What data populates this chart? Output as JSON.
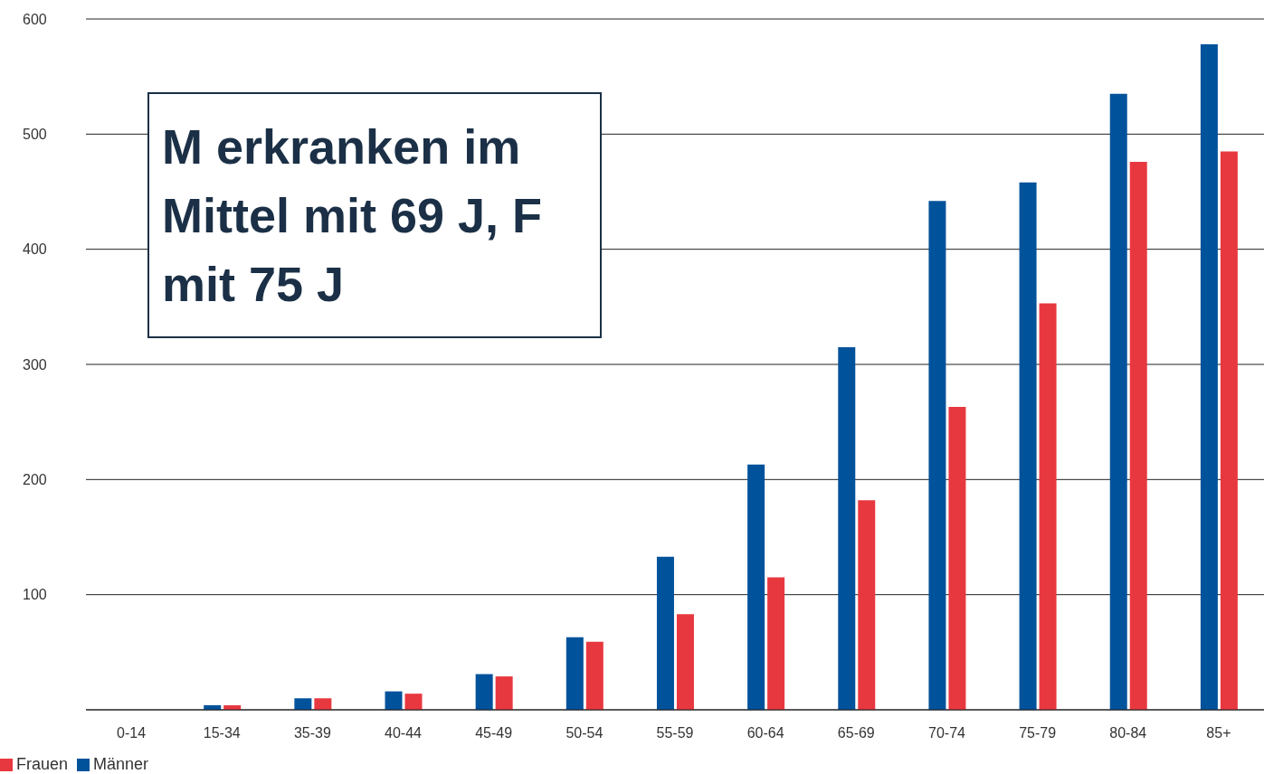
{
  "chart_data": {
    "type": "bar",
    "categories": [
      "0-14",
      "15-34",
      "35-39",
      "40-44",
      "45-49",
      "50-54",
      "55-59",
      "60-64",
      "65-69",
      "70-74",
      "75-79",
      "80-84",
      "85+"
    ],
    "series": [
      {
        "name": "Männer",
        "color": "#00529b",
        "values": [
          0,
          4,
          10,
          16,
          31,
          63,
          133,
          213,
          315,
          442,
          458,
          535,
          578
        ]
      },
      {
        "name": "Frauen",
        "color": "#e8383f",
        "values": [
          0,
          4,
          10,
          14,
          29,
          59,
          83,
          115,
          182,
          263,
          353,
          476,
          485
        ]
      }
    ],
    "ylim": [
      0,
      600
    ],
    "yticks": [
      100,
      200,
      300,
      400,
      500,
      600
    ],
    "grid": "y",
    "legend": "bottom left",
    "annotations": [
      "M erkranken im Mittel mit 69 J, F mit 75 J"
    ]
  }
}
